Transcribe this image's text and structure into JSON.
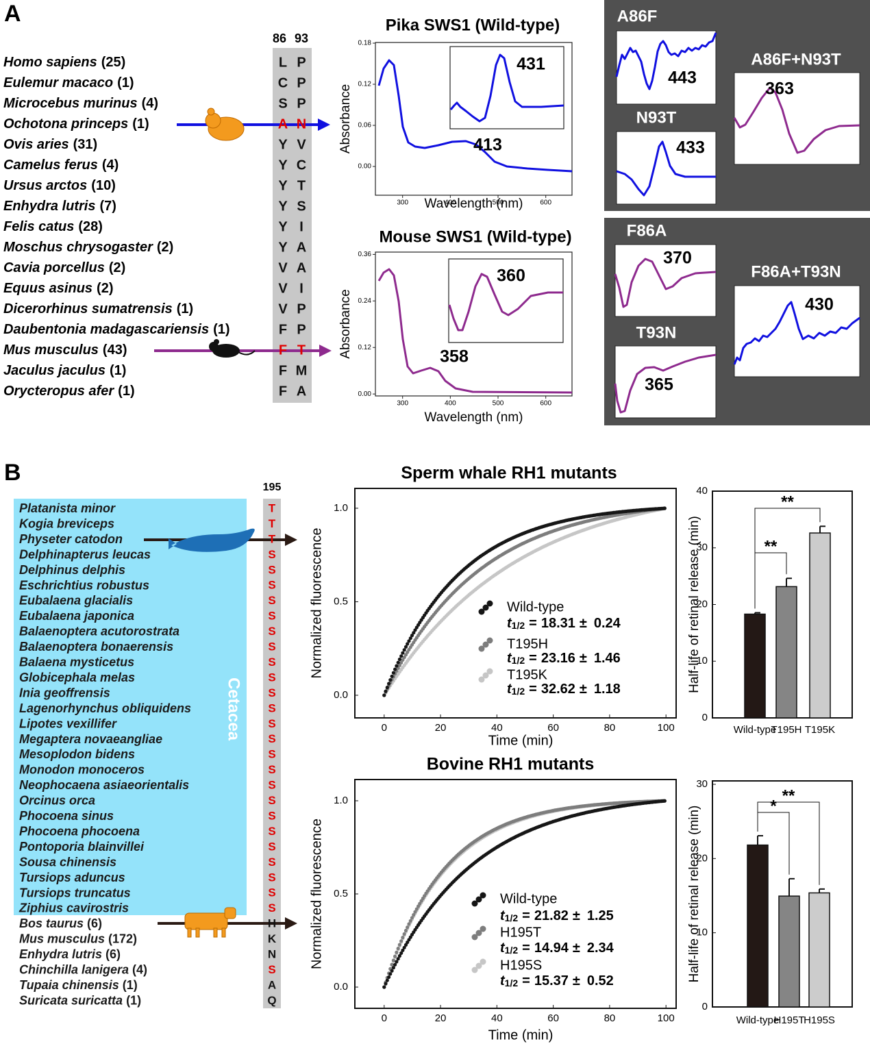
{
  "panel_a": {
    "label": "A",
    "positions": [
      "86",
      "93"
    ],
    "species": [
      {
        "name": "Homo sapiens",
        "count": "(25)",
        "residues": [
          "L",
          "P"
        ]
      },
      {
        "name": "Eulemur macaco",
        "count": "(1)",
        "residues": [
          "C",
          "P"
        ]
      },
      {
        "name": "Microcebus murinus",
        "count": "(4)",
        "residues": [
          "S",
          "P"
        ]
      },
      {
        "name": "Ochotona princeps",
        "count": "(1)",
        "residues": [
          "A",
          "N"
        ],
        "highlight": true
      },
      {
        "name": "Ovis aries",
        "count": "(31)",
        "residues": [
          "Y",
          "V"
        ]
      },
      {
        "name": "Camelus ferus",
        "count": "(4)",
        "residues": [
          "Y",
          "C"
        ]
      },
      {
        "name": "Ursus arctos",
        "count": "(10)",
        "residues": [
          "Y",
          "T"
        ]
      },
      {
        "name": "Enhydra lutris",
        "count": "(7)",
        "residues": [
          "Y",
          "S"
        ]
      },
      {
        "name": "Felis catus",
        "count": "(28)",
        "residues": [
          "Y",
          "I"
        ]
      },
      {
        "name": "Moschus chrysogaster",
        "count": "(2)",
        "residues": [
          "Y",
          "A"
        ]
      },
      {
        "name": "Cavia porcellus",
        "count": "(2)",
        "residues": [
          "V",
          "A"
        ]
      },
      {
        "name": "Equus asinus",
        "count": "(2)",
        "residues": [
          "V",
          "I"
        ]
      },
      {
        "name": "Dicerorhinus sumatrensis",
        "count": "(1)",
        "residues": [
          "V",
          "P"
        ]
      },
      {
        "name": "Daubentonia madagascariensis",
        "count": "(1)",
        "residues": [
          "F",
          "P"
        ]
      },
      {
        "name": "Mus musculus",
        "count": "(43)",
        "residues": [
          "F",
          "T"
        ],
        "highlight": true
      },
      {
        "name": "Jaculus jaculus",
        "count": "(1)",
        "residues": [
          "F",
          "M"
        ]
      },
      {
        "name": "Orycteropus afer",
        "count": "(1)",
        "residues": [
          "F",
          "A"
        ]
      }
    ],
    "spectra": [
      {
        "title": "Pika SWS1 (Wild-type)",
        "ylabel": "Absorbance",
        "xlabel": "Wavelength (nm)",
        "xlim": [
          243,
          655
        ],
        "ylim": [
          -0.042,
          0.181
        ],
        "xticks": [
          300,
          400,
          500,
          600
        ],
        "yticks": [
          {
            "value": 0,
            "label": "0.00"
          },
          0.06,
          0.12,
          0.18
        ],
        "peak": "413",
        "inset_peak": "431",
        "color": "#1010e0"
      },
      {
        "title": "Mouse SWS1 (Wild-type)",
        "ylabel": "Absorbance",
        "xlabel": "Wavelength (nm)",
        "xlim": [
          243,
          655
        ],
        "ylim": [
          -0.005,
          0.366
        ],
        "xticks": [
          300,
          400,
          500,
          600
        ],
        "yticks": [
          {
            "value": 0,
            "label": "0.00"
          },
          0.12,
          0.24,
          0.36
        ],
        "peak": "358",
        "inset_peak": "360",
        "color": "#8e2a8e"
      }
    ],
    "mutants": [
      {
        "name": "A86F",
        "peak": "443",
        "color": "#1010e0"
      },
      {
        "name": "N93T",
        "peak": "433",
        "color": "#1010e0"
      },
      {
        "name": "A86F+N93T",
        "peak": "363",
        "color": "#8e2a8e"
      },
      {
        "name": "F86A",
        "peak": "370",
        "color": "#8e2a8e"
      },
      {
        "name": "T93N",
        "peak": "365",
        "color": "#8e2a8e"
      },
      {
        "name": "F86A+T93N",
        "peak": "430",
        "color": "#1010e0"
      }
    ]
  },
  "panel_b": {
    "label": "B",
    "position": "195",
    "group": "Cetacea",
    "species": [
      {
        "name": "Platanista minor",
        "residue": "T",
        "highlight": true
      },
      {
        "name": "Kogia breviceps",
        "residue": "T",
        "highlight": true
      },
      {
        "name": "Physeter catodon",
        "residue": "T",
        "highlight": true
      },
      {
        "name": "Delphinapterus leucas",
        "residue": "S",
        "highlight": true
      },
      {
        "name": "Delphinus delphis",
        "residue": "S",
        "highlight": true
      },
      {
        "name": "Eschrichtius robustus",
        "residue": "S",
        "highlight": true
      },
      {
        "name": "Eubalaena glacialis",
        "residue": "S",
        "highlight": true
      },
      {
        "name": "Eubalaena japonica",
        "residue": "S",
        "highlight": true
      },
      {
        "name": "Balaenoptera acutorostrata",
        "residue": "S",
        "highlight": true
      },
      {
        "name": "Balaenoptera bonaerensis",
        "residue": "S",
        "highlight": true
      },
      {
        "name": "Balaena mysticetus",
        "residue": "S",
        "highlight": true
      },
      {
        "name": "Globicephala melas",
        "residue": "S",
        "highlight": true
      },
      {
        "name": "Inia geoffrensis",
        "residue": "S",
        "highlight": true
      },
      {
        "name": "Lagenorhynchus obliquidens",
        "residue": "S",
        "highlight": true
      },
      {
        "name": "Lipotes vexillifer",
        "residue": "S",
        "highlight": true
      },
      {
        "name": "Megaptera novaeangliae",
        "residue": "S",
        "highlight": true
      },
      {
        "name": "Mesoplodon bidens",
        "residue": "S",
        "highlight": true
      },
      {
        "name": "Monodon monoceros",
        "residue": "S",
        "highlight": true
      },
      {
        "name": "Neophocaena asiaeorientalis",
        "residue": "S",
        "highlight": true
      },
      {
        "name": "Orcinus orca",
        "residue": "S",
        "highlight": true
      },
      {
        "name": "Phocoena sinus",
        "residue": "S",
        "highlight": true
      },
      {
        "name": "Phocoena phocoena",
        "residue": "S",
        "highlight": true
      },
      {
        "name": "Pontoporia blainvillei",
        "residue": "S",
        "highlight": true
      },
      {
        "name": "Sousa chinensis",
        "residue": "S",
        "highlight": true
      },
      {
        "name": "Tursiops aduncus",
        "residue": "S",
        "highlight": true
      },
      {
        "name": "Tursiops truncatus",
        "residue": "S",
        "highlight": true
      },
      {
        "name": "Ziphius cavirostris",
        "residue": "S",
        "highlight": true
      },
      {
        "name": "Bos taurus",
        "count": "(6)",
        "residue": "H"
      },
      {
        "name": "Mus musculus",
        "count": "(172)",
        "residue": "K"
      },
      {
        "name": "Enhydra lutris",
        "count": "(6)",
        "residue": "N"
      },
      {
        "name": "Chinchilla lanigera",
        "count": "(4)",
        "residue": "S",
        "highlight": true
      },
      {
        "name": "Tupaia chinensis",
        "count": "(1)",
        "residue": "A"
      },
      {
        "name": "Suricata suricatta",
        "count": "(1)",
        "residue": "Q"
      }
    ],
    "stat": {
      "symbol": "t",
      "sub": "1/2",
      "eq": "=",
      "pm": "±"
    },
    "experiments": [
      {
        "title": "Sperm whale RH1 mutants",
        "xlabel": "Time (min)",
        "ylabel": "Normalized fluorescence",
        "xlim": [
          -10.4,
          103.6
        ],
        "ylim": [
          -0.121,
          1.106
        ],
        "xticks": [
          0,
          20,
          40,
          60,
          80,
          100
        ],
        "yticks": [
          {
            "value": 0,
            "label": "0.0"
          },
          0.5,
          {
            "value": 1,
            "label": "1.0"
          }
        ],
        "bar_ylabel": "Half-life of retinal release (min)",
        "bar_ylim": [
          0,
          40
        ],
        "bar_yticks": [
          0,
          10,
          20,
          30,
          40
        ],
        "series": [
          {
            "name": "Wild-type",
            "color": "#161616",
            "bar_color": "#231815",
            "value": 18.31,
            "error": 0.24
          },
          {
            "name": "T195H",
            "color": "#7d7d7d",
            "bar_color": "#858585",
            "value": 23.16,
            "error": 1.46
          },
          {
            "name": "T195K",
            "color": "#c6c6c6",
            "bar_color": "#cccccc",
            "value": 32.62,
            "error": 1.18
          }
        ],
        "significance": [
          {
            "from": 0,
            "to": 1,
            "label": "**"
          },
          {
            "from": 0,
            "to": 2,
            "label": "**"
          }
        ]
      },
      {
        "title": "Bovine RH1 mutants",
        "xlabel": "Time (min)",
        "ylabel": "Normalized fluorescence",
        "xlim": [
          -10.4,
          103.6
        ],
        "ylim": [
          -0.114,
          1.114
        ],
        "xticks": [
          0,
          20,
          40,
          60,
          80,
          100
        ],
        "yticks": [
          {
            "value": 0,
            "label": "0.0"
          },
          0.5,
          {
            "value": 1,
            "label": "1.0"
          }
        ],
        "bar_ylabel": "Half-life of retinal release (min)",
        "bar_ylim": [
          0,
          30.46
        ],
        "bar_yticks": [
          0,
          10,
          20,
          30
        ],
        "series": [
          {
            "name": "Wild-type",
            "color": "#161616",
            "bar_color": "#231815",
            "value": 21.82,
            "error": 1.25
          },
          {
            "name": "H195T",
            "color": "#7d7d7d",
            "bar_color": "#858585",
            "value": 14.94,
            "error": 2.34
          },
          {
            "name": "H195S",
            "color": "#c6c6c6",
            "bar_color": "#cccccc",
            "value": 15.37,
            "error": 0.52
          }
        ],
        "significance": [
          {
            "from": 0,
            "to": 1,
            "label": "*"
          },
          {
            "from": 0,
            "to": 2,
            "label": "**"
          }
        ]
      }
    ]
  }
}
